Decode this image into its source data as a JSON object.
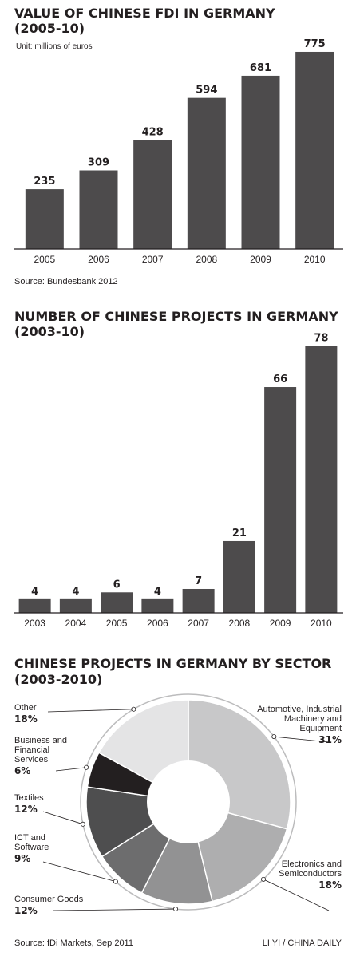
{
  "chart_data": [
    {
      "type": "bar",
      "title": "VALUE OF CHINESE FDI IN GERMANY",
      "subtitle": "(2005-10)",
      "unit": "Unit: millions of euros",
      "categories": [
        "2005",
        "2006",
        "2007",
        "2008",
        "2009",
        "2010"
      ],
      "values": [
        235,
        309,
        428,
        594,
        681,
        775
      ],
      "value_labels": [
        "235",
        "309",
        "428",
        "594",
        "681",
        "775"
      ],
      "ylim": [
        0,
        800
      ],
      "grid": false,
      "source": "Source: Bundesbank 2012",
      "bar_color": "#4d4b4c"
    },
    {
      "type": "bar",
      "title": "NUMBER OF CHINESE PROJECTS IN GERMANY",
      "subtitle": "(2003-10)",
      "categories": [
        "2003",
        "2004",
        "2005",
        "2006",
        "2007",
        "2008",
        "2009",
        "2010"
      ],
      "values": [
        4,
        4,
        6,
        4,
        7,
        21,
        66,
        78
      ],
      "value_labels": [
        "4",
        "4",
        "6",
        "4",
        "7",
        "21",
        "66",
        "78"
      ],
      "ylim": [
        0,
        80
      ],
      "grid": false,
      "bar_color": "#4d4b4c"
    },
    {
      "type": "pie",
      "title": "CHINESE PROJECTS IN GERMANY BY SECTOR",
      "subtitle": "(2003-2010)",
      "slices": [
        {
          "label_lines": [
            "Automotive, Industrial",
            "Machinery and",
            "Equipment"
          ],
          "pct": "31%",
          "value": 31,
          "color": "#c8c8c9"
        },
        {
          "label_lines": [
            "Electronics and",
            "Semiconductors"
          ],
          "pct": "18%",
          "value": 18,
          "color": "#aeaeaf"
        },
        {
          "label_lines": [
            "Consumer Goods"
          ],
          "pct": "12%",
          "value": 12,
          "color": "#929293"
        },
        {
          "label_lines": [
            "ICT and",
            "Software"
          ],
          "pct": "9%",
          "value": 9,
          "color": "#6d6d6e"
        },
        {
          "label_lines": [
            "Textiles"
          ],
          "pct": "12%",
          "value": 12,
          "color": "#4e4e4f"
        },
        {
          "label_lines": [
            "Business and",
            "Financial",
            "Services"
          ],
          "pct": "6%",
          "value": 6,
          "color": "#231f20"
        },
        {
          "label_lines": [
            "Other"
          ],
          "pct": "18%",
          "value": 18,
          "color": "#e4e4e5"
        }
      ],
      "source": "Source: fDi Markets, Sep 2011",
      "credit": "LI YI / CHINA DAILY"
    }
  ]
}
